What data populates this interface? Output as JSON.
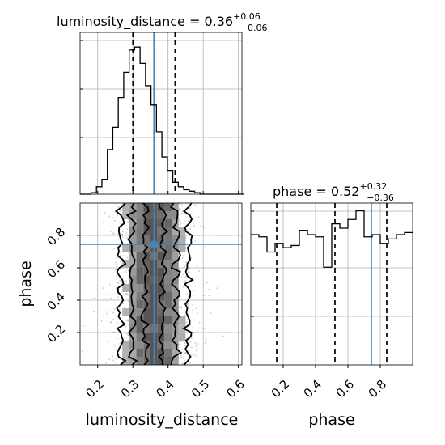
{
  "colors": {
    "truth": "#4682b4",
    "hist": "#000000",
    "grid": "#b0b0b0"
  },
  "chart_data": [
    {
      "type": "histogram",
      "title_main": "luminosity_distance = 0.36",
      "title_sup": "+0.06",
      "title_sub": "−0.06",
      "xlim": [
        0.15,
        0.61
      ],
      "bin_edges_start": 0.15,
      "bin_width": 0.0155,
      "counts": [
        0,
        0,
        1,
        5,
        10,
        30,
        45,
        65,
        82,
        97,
        99,
        88,
        73,
        60,
        42,
        25,
        16,
        8,
        5,
        3,
        2,
        1,
        0,
        0,
        0,
        0,
        0,
        0,
        0,
        0
      ],
      "quantiles": [
        0.3,
        0.36,
        0.42
      ],
      "truth": 0.36
    },
    {
      "type": "contour",
      "xlabel": "luminosity_distance",
      "ylabel": "phase",
      "xlim": [
        0.15,
        0.61
      ],
      "ylim": [
        0.0,
        1.0
      ],
      "xticks": [
        0.2,
        0.3,
        0.4,
        0.5,
        0.6
      ],
      "xticklabels": [
        "0.2",
        "0.3",
        "0.4",
        "0.5",
        "0.6"
      ],
      "yticks": [
        0.2,
        0.4,
        0.6,
        0.8
      ],
      "yticklabels": [
        "0.2",
        "0.4",
        "0.6",
        "0.8"
      ],
      "truth": {
        "x": 0.36,
        "y": 0.745
      }
    },
    {
      "type": "histogram",
      "title_main": "phase = 0.52",
      "title_sup": "+0.32",
      "title_sub": "−0.36",
      "xlabel": "phase",
      "xlim": [
        0.0,
        1.0
      ],
      "xticks": [
        0.2,
        0.4,
        0.6,
        0.8
      ],
      "xticklabels": [
        "0.2",
        "0.4",
        "0.6",
        "0.8"
      ],
      "counts": [
        60,
        59,
        52,
        56,
        54,
        55,
        62,
        60,
        59,
        45,
        65,
        63,
        67,
        71,
        59,
        60,
        56,
        58,
        60,
        61
      ],
      "quantiles": [
        0.16,
        0.52,
        0.84
      ],
      "truth": 0.745
    }
  ]
}
